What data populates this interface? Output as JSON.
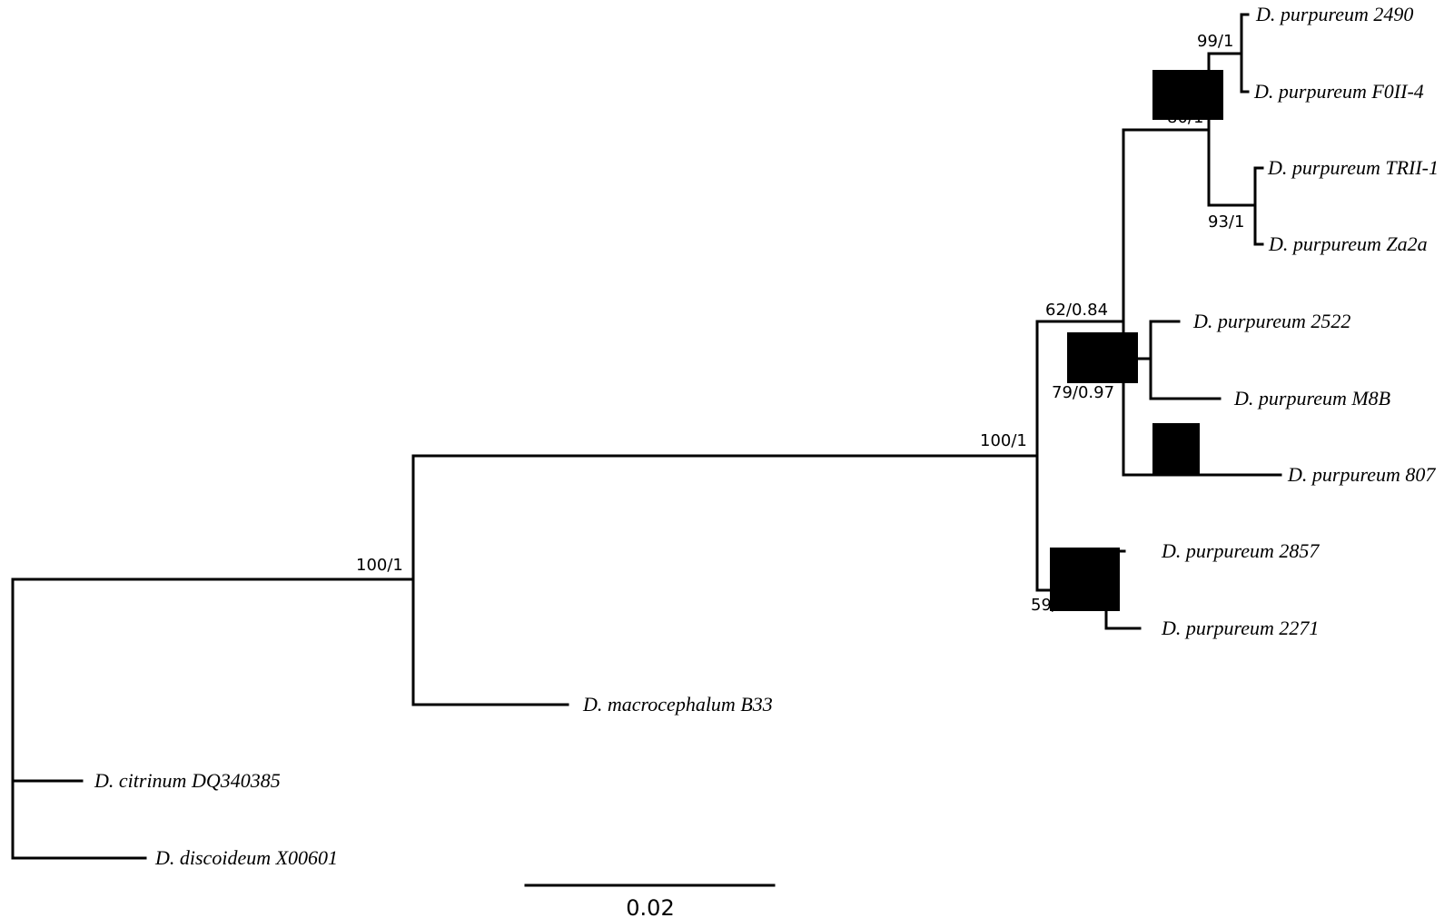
{
  "taxa": {
    "t1": "D. purpureum 2490",
    "t2": "D. purpureum F0II-4",
    "t3": "D. purpureum TRII-1",
    "t4": "D. purpureum Za2a",
    "t5": "D. purpureum 2522",
    "t6": "D. purpureum M8B",
    "t7": "D. purpureum 807",
    "t8": "D. purpureum 2857",
    "t9": "D. purpureum 2271",
    "t10": "D. macrocephalum B33",
    "t11": "D. citrinum DQ340385",
    "t12": "D. discoideum X00601"
  },
  "supports": {
    "s_2490_f0ii": "99/1",
    "s_upper_clade": "80/1",
    "s_tr_za": "93/1",
    "s_62": "62/0.84",
    "s_79": "79/0.97",
    "s_100_inner": "100/1",
    "s_59": "59/",
    "s_100_outer": "100/1"
  },
  "scale_bar": {
    "label": "0.02"
  },
  "colors": {
    "line": "#000000",
    "background": "#ffffff"
  }
}
